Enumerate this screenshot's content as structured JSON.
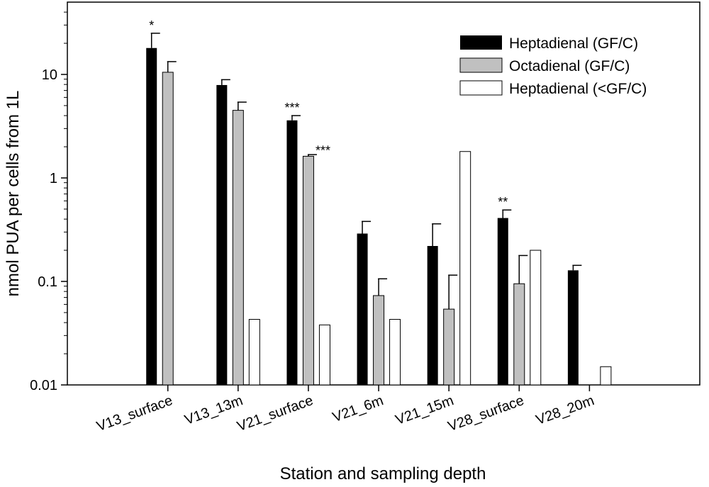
{
  "chart_data": {
    "type": "bar",
    "title": "",
    "xlabel": "Station and sampling depth",
    "ylabel": "nmol PUA per cells from 1L",
    "yscale": "log",
    "ylim": [
      0.01,
      40
    ],
    "yticks": [
      {
        "value": 0.01,
        "label": "0.01"
      },
      {
        "value": 0.1,
        "label": "0.1"
      },
      {
        "value": 1,
        "label": "1"
      },
      {
        "value": 10,
        "label": "10"
      }
    ],
    "categories": [
      "V13_surface",
      "V13_13m",
      "V21_surface",
      "V21_6m",
      "V21_15m",
      "V28_surface",
      "V28_20m"
    ],
    "series": [
      {
        "name": "Heptadienal (GF/C)",
        "color": "#000000",
        "values": [
          18,
          7.9,
          3.6,
          0.29,
          0.22,
          0.41,
          0.128
        ],
        "error_upper": [
          25,
          8.9,
          4.0,
          0.38,
          0.36,
          0.49,
          0.143
        ],
        "significance": [
          "*",
          null,
          "***",
          null,
          null,
          "**",
          null
        ]
      },
      {
        "name": "Octadienal (GF/C)",
        "color": "#c0c0c0",
        "values": [
          10.5,
          4.5,
          1.62,
          0.073,
          0.054,
          0.095,
          null
        ],
        "error_upper": [
          13.3,
          5.4,
          1.68,
          0.106,
          0.115,
          0.178,
          null
        ],
        "significance": [
          null,
          null,
          "***",
          null,
          null,
          null,
          null
        ]
      },
      {
        "name": "Heptadienal (<GF/C)",
        "color": "#ffffff",
        "values": [
          null,
          0.043,
          0.038,
          0.043,
          1.8,
          0.2,
          0.015
        ],
        "error_upper": [
          null,
          null,
          null,
          null,
          null,
          null,
          null
        ],
        "significance": [
          null,
          null,
          null,
          null,
          null,
          null,
          null
        ]
      }
    ],
    "legend_position": "top-right"
  }
}
